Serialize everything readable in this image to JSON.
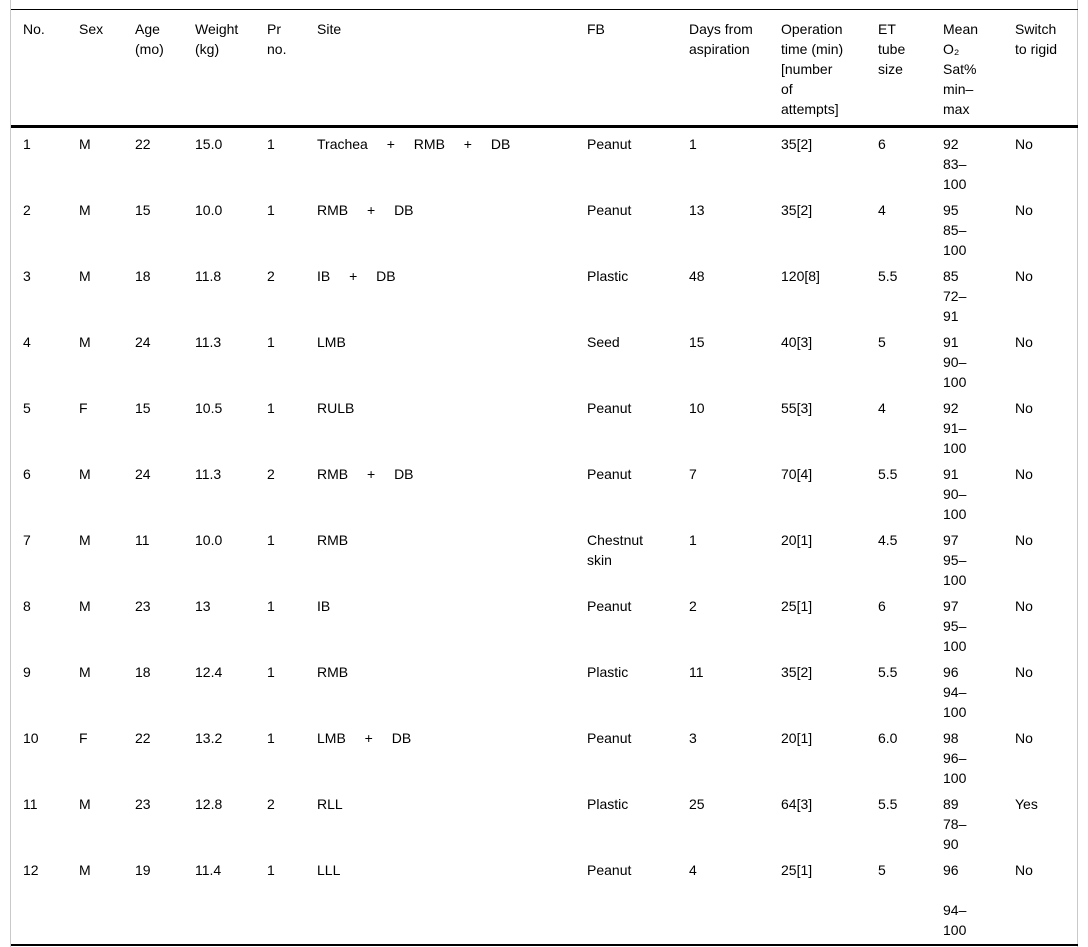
{
  "table": {
    "columns": [
      {
        "id": "no",
        "label": "No."
      },
      {
        "id": "sex",
        "label": "Sex"
      },
      {
        "id": "age_mo",
        "label": "Age\n(mo)"
      },
      {
        "id": "weight_kg",
        "label": "Weight\n(kg)"
      },
      {
        "id": "pr_no",
        "label": "Pr\nno."
      },
      {
        "id": "site",
        "label": "Site"
      },
      {
        "id": "fb",
        "label": "FB"
      },
      {
        "id": "days_from_aspiration",
        "label": "Days from\naspiration"
      },
      {
        "id": "operation_time",
        "label": "Operation\ntime (min)\n[number\nof\nattempts]"
      },
      {
        "id": "et_tube_size",
        "label": "ET\ntube\nsize"
      },
      {
        "id": "mean_o2_sat",
        "label": "Mean\nO₂\nSat%\nmin–\nmax"
      },
      {
        "id": "switch_to_rigid",
        "label": "Switch\nto rigid"
      }
    ],
    "rows": [
      [
        "1",
        "M",
        "22",
        "15.0",
        "1",
        "Trachea + RMB + DB",
        "Peanut",
        "1",
        "35[2]",
        "6",
        "92\n83–\n100",
        "No"
      ],
      [
        "2",
        "M",
        "15",
        "10.0",
        "1",
        "RMB + DB",
        "Peanut",
        "13",
        "35[2]",
        "4",
        "95\n85–\n100",
        "No"
      ],
      [
        "3",
        "M",
        "18",
        "11.8",
        "2",
        "IB + DB",
        "Plastic",
        "48",
        "120[8]",
        "5.5",
        "85\n72–\n91",
        "No"
      ],
      [
        "4",
        "M",
        "24",
        "11.3",
        "1",
        "LMB",
        "Seed",
        "15",
        "40[3]",
        "5",
        "91\n90–\n100",
        "No"
      ],
      [
        "5",
        "F",
        "15",
        "10.5",
        "1",
        "RULB",
        "Peanut",
        "10",
        "55[3]",
        "4",
        "92\n91–\n100",
        "No"
      ],
      [
        "6",
        "M",
        "24",
        "11.3",
        "2",
        "RMB + DB",
        "Peanut",
        "7",
        "70[4]",
        "5.5",
        "91\n90–\n100",
        "No"
      ],
      [
        "7",
        "M",
        "11",
        "10.0",
        "1",
        "RMB",
        "Chestnut\nskin",
        "1",
        "20[1]",
        "4.5",
        "97\n95–\n100",
        "No"
      ],
      [
        "8",
        "M",
        "23",
        "13",
        "1",
        "IB",
        "Peanut",
        "2",
        "25[1]",
        "6",
        "97\n95–\n100",
        "No"
      ],
      [
        "9",
        "M",
        "18",
        "12.4",
        "1",
        "RMB",
        "Plastic",
        "11",
        "35[2]",
        "5.5",
        "96\n94–\n100",
        "No"
      ],
      [
        "10",
        "F",
        "22",
        "13.2",
        "1",
        "LMB + DB",
        "Peanut",
        "3",
        "20[1]",
        "6.0",
        "98\n96–\n100",
        "No"
      ],
      [
        "11",
        "M",
        "23",
        "12.8",
        "2",
        "RLL",
        "Plastic",
        "25",
        "64[3]",
        "5.5",
        "89\n78–\n90",
        "Yes"
      ],
      [
        "12",
        "M",
        "19",
        "11.4",
        "1",
        "LLL",
        "Peanut",
        "4",
        "25[1]",
        "5",
        "96\n\n94–\n100",
        "No"
      ]
    ]
  },
  "colors": {
    "text": "#000000",
    "background": "#ffffff",
    "heavy_rule": "#000000",
    "outer_border": "#c9c9c9"
  }
}
